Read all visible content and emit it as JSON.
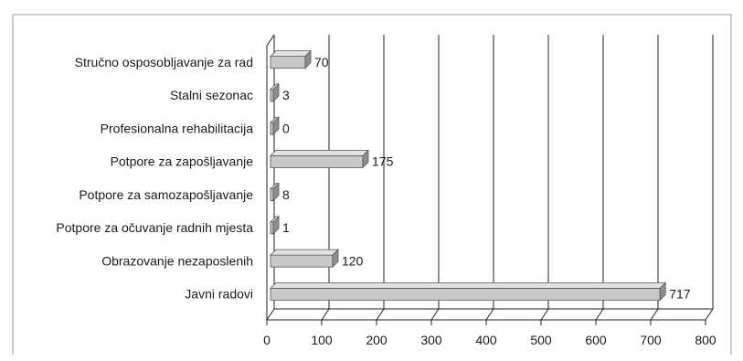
{
  "chart_data": {
    "type": "bar",
    "orientation": "horizontal",
    "style": "3d",
    "categories": [
      "Stručno osposobljavanje za rad",
      "Stalni sezonac",
      "Profesionalna rehabilitacija",
      "Potpore za zapošljavanje",
      "Potpore za samozapošljavanje",
      "Potpore za očuvanje radnih mjesta",
      "Obrazovanje nezaposlenih",
      "Javni radovi"
    ],
    "values": [
      70,
      3,
      0,
      175,
      8,
      1,
      120,
      717
    ],
    "data_labels": [
      "70",
      "3",
      "0",
      "175",
      "8",
      "1",
      "120",
      "717"
    ],
    "x_ticks": [
      "0",
      "100",
      "200",
      "300",
      "400",
      "500",
      "600",
      "700",
      "800"
    ],
    "xlim": [
      0,
      800
    ],
    "grid": true,
    "legend": false,
    "title": "",
    "xlabel": "",
    "ylabel": "",
    "colors": {
      "bar_face": "#c8c8c8",
      "bar_top": "#e2e2e2",
      "bar_end": "#8e8e8e",
      "bar_edge": "#555555",
      "grid": "#1f1f1f",
      "frame": "#9a9a9a"
    }
  }
}
